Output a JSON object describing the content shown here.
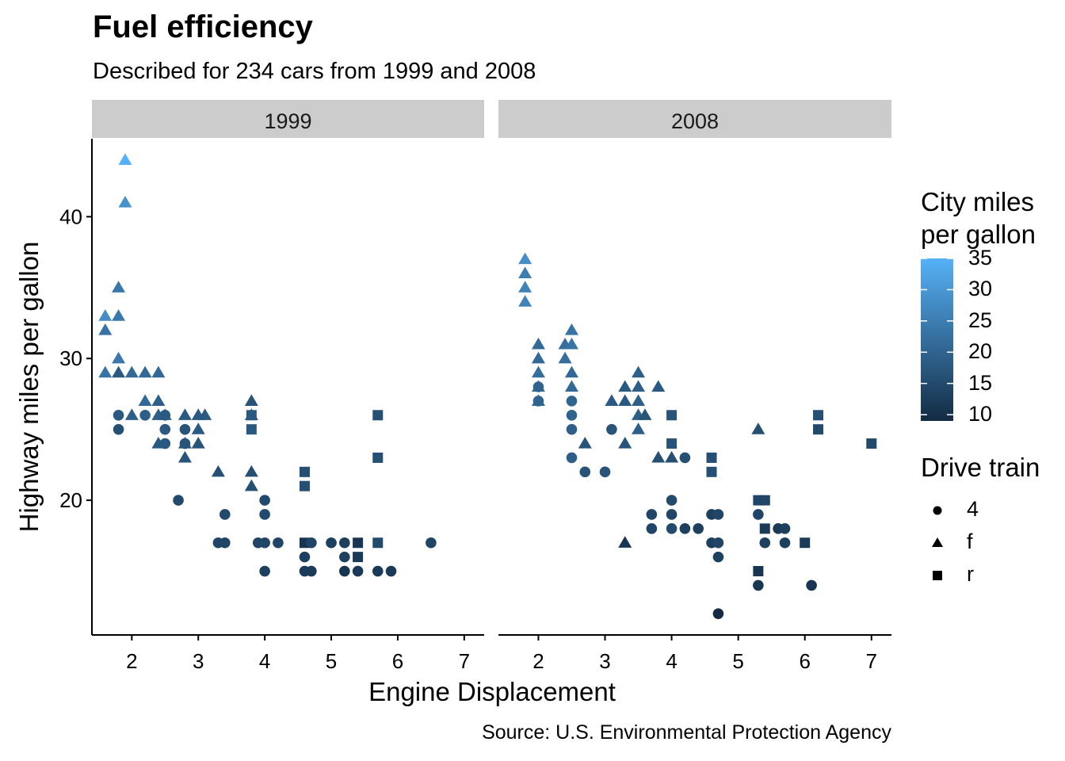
{
  "chart_data": {
    "type": "scatter",
    "title": "Fuel efficiency",
    "subtitle": "Described for 234 cars from 1999 and 2008",
    "caption": "Source: U.S. Environmental Protection Agency",
    "xlabel": "Engine Displacement",
    "ylabel": "Highway miles per gallon",
    "xlim": [
      1.4,
      7.3
    ],
    "ylim": [
      10.5,
      45.5
    ],
    "xticks": [
      2,
      3,
      4,
      5,
      6,
      7
    ],
    "yticks": [
      20,
      30,
      40
    ],
    "grid": false,
    "facets": [
      {
        "label": "1999",
        "points": [
          {
            "x": 1.9,
            "y": 44,
            "drv": "f",
            "cty": 35
          },
          {
            "x": 1.9,
            "y": 41,
            "drv": "f",
            "cty": 29
          },
          {
            "x": 1.8,
            "y": 35,
            "drv": "f",
            "cty": 24
          },
          {
            "x": 1.6,
            "y": 33,
            "drv": "f",
            "cty": 28
          },
          {
            "x": 1.8,
            "y": 33,
            "drv": "f",
            "cty": 24
          },
          {
            "x": 1.6,
            "y": 32,
            "drv": "f",
            "cty": 23
          },
          {
            "x": 1.8,
            "y": 30,
            "drv": "f",
            "cty": 24
          },
          {
            "x": 1.6,
            "y": 29,
            "drv": "f",
            "cty": 23
          },
          {
            "x": 1.8,
            "y": 29,
            "drv": "f",
            "cty": 18
          },
          {
            "x": 2.0,
            "y": 29,
            "drv": "f",
            "cty": 21
          },
          {
            "x": 2.2,
            "y": 29,
            "drv": "f",
            "cty": 21
          },
          {
            "x": 2.4,
            "y": 29,
            "drv": "f",
            "cty": 21
          },
          {
            "x": 2.2,
            "y": 27,
            "drv": "f",
            "cty": 21
          },
          {
            "x": 2.4,
            "y": 27,
            "drv": "f",
            "cty": 19
          },
          {
            "x": 1.8,
            "y": 26,
            "drv": "4",
            "cty": 18
          },
          {
            "x": 2.0,
            "y": 26,
            "drv": "f",
            "cty": 19
          },
          {
            "x": 2.2,
            "y": 26,
            "drv": "4",
            "cty": 19
          },
          {
            "x": 2.4,
            "y": 26,
            "drv": "f",
            "cty": 19
          },
          {
            "x": 2.5,
            "y": 26,
            "drv": "f",
            "cty": 19
          },
          {
            "x": 2.5,
            "y": 26,
            "drv": "4",
            "cty": 18
          },
          {
            "x": 2.8,
            "y": 26,
            "drv": "f",
            "cty": 18
          },
          {
            "x": 3.0,
            "y": 26,
            "drv": "f",
            "cty": 18
          },
          {
            "x": 3.1,
            "y": 26,
            "drv": "f",
            "cty": 18
          },
          {
            "x": 1.8,
            "y": 25,
            "drv": "4",
            "cty": 16
          },
          {
            "x": 2.5,
            "y": 25,
            "drv": "4",
            "cty": 18
          },
          {
            "x": 2.8,
            "y": 25,
            "drv": "4",
            "cty": 17
          },
          {
            "x": 3.0,
            "y": 25,
            "drv": "f",
            "cty": 18
          },
          {
            "x": 2.4,
            "y": 24,
            "drv": "f",
            "cty": 18
          },
          {
            "x": 2.5,
            "y": 24,
            "drv": "4",
            "cty": 18
          },
          {
            "x": 2.8,
            "y": 24,
            "drv": "4",
            "cty": 17
          },
          {
            "x": 2.8,
            "y": 24,
            "drv": "f",
            "cty": 17
          },
          {
            "x": 3.0,
            "y": 24,
            "drv": "f",
            "cty": 17
          },
          {
            "x": 2.8,
            "y": 23,
            "drv": "f",
            "cty": 17
          },
          {
            "x": 3.8,
            "y": 27,
            "drv": "f",
            "cty": 17
          },
          {
            "x": 3.8,
            "y": 26,
            "drv": "f",
            "cty": 17
          },
          {
            "x": 3.8,
            "y": 26,
            "drv": "r",
            "cty": 18
          },
          {
            "x": 3.8,
            "y": 25,
            "drv": "r",
            "cty": 18
          },
          {
            "x": 3.3,
            "y": 22,
            "drv": "f",
            "cty": 16
          },
          {
            "x": 3.8,
            "y": 22,
            "drv": "f",
            "cty": 16
          },
          {
            "x": 3.8,
            "y": 21,
            "drv": "f",
            "cty": 16
          },
          {
            "x": 2.7,
            "y": 20,
            "drv": "4",
            "cty": 15
          },
          {
            "x": 4.6,
            "y": 22,
            "drv": "r",
            "cty": 16
          },
          {
            "x": 4.6,
            "y": 21,
            "drv": "r",
            "cty": 16
          },
          {
            "x": 4.0,
            "y": 20,
            "drv": "4",
            "cty": 15
          },
          {
            "x": 3.4,
            "y": 19,
            "drv": "4",
            "cty": 15
          },
          {
            "x": 4.0,
            "y": 19,
            "drv": "4",
            "cty": 15
          },
          {
            "x": 3.3,
            "y": 17,
            "drv": "4",
            "cty": 14
          },
          {
            "x": 3.4,
            "y": 17,
            "drv": "4",
            "cty": 14
          },
          {
            "x": 3.9,
            "y": 17,
            "drv": "4",
            "cty": 14
          },
          {
            "x": 4.0,
            "y": 17,
            "drv": "4",
            "cty": 14
          },
          {
            "x": 4.2,
            "y": 17,
            "drv": "4",
            "cty": 14
          },
          {
            "x": 4.6,
            "y": 17,
            "drv": "r",
            "cty": 11
          },
          {
            "x": 4.7,
            "y": 17,
            "drv": "4",
            "cty": 14
          },
          {
            "x": 5.0,
            "y": 17,
            "drv": "4",
            "cty": 13
          },
          {
            "x": 5.2,
            "y": 17,
            "drv": "4",
            "cty": 13
          },
          {
            "x": 5.4,
            "y": 17,
            "drv": "r",
            "cty": 11
          },
          {
            "x": 5.7,
            "y": 17,
            "drv": "r",
            "cty": 15
          },
          {
            "x": 6.5,
            "y": 17,
            "drv": "4",
            "cty": 14
          },
          {
            "x": 5.7,
            "y": 26,
            "drv": "r",
            "cty": 16
          },
          {
            "x": 5.7,
            "y": 23,
            "drv": "r",
            "cty": 16
          },
          {
            "x": 4.6,
            "y": 16,
            "drv": "4",
            "cty": 13
          },
          {
            "x": 5.2,
            "y": 16,
            "drv": "4",
            "cty": 13
          },
          {
            "x": 5.4,
            "y": 16,
            "drv": "r",
            "cty": 12
          },
          {
            "x": 4.0,
            "y": 15,
            "drv": "4",
            "cty": 13
          },
          {
            "x": 4.6,
            "y": 15,
            "drv": "4",
            "cty": 12
          },
          {
            "x": 4.7,
            "y": 15,
            "drv": "4",
            "cty": 12
          },
          {
            "x": 5.2,
            "y": 15,
            "drv": "4",
            "cty": 11
          },
          {
            "x": 5.4,
            "y": 15,
            "drv": "4",
            "cty": 12
          },
          {
            "x": 5.7,
            "y": 15,
            "drv": "4",
            "cty": 12
          },
          {
            "x": 5.9,
            "y": 15,
            "drv": "4",
            "cty": 12
          }
        ]
      },
      {
        "label": "2008",
        "points": [
          {
            "x": 1.8,
            "y": 37,
            "drv": "f",
            "cty": 28
          },
          {
            "x": 1.8,
            "y": 36,
            "drv": "f",
            "cty": 25
          },
          {
            "x": 1.8,
            "y": 35,
            "drv": "f",
            "cty": 26
          },
          {
            "x": 1.8,
            "y": 34,
            "drv": "f",
            "cty": 26
          },
          {
            "x": 2.0,
            "y": 31,
            "drv": "f",
            "cty": 21
          },
          {
            "x": 2.0,
            "y": 30,
            "drv": "f",
            "cty": 21
          },
          {
            "x": 2.0,
            "y": 29,
            "drv": "f",
            "cty": 22
          },
          {
            "x": 2.0,
            "y": 28,
            "drv": "f",
            "cty": 21
          },
          {
            "x": 2.0,
            "y": 28,
            "drv": "4",
            "cty": 20
          },
          {
            "x": 2.0,
            "y": 27,
            "drv": "f",
            "cty": 21
          },
          {
            "x": 2.0,
            "y": 27,
            "drv": "4",
            "cty": 20
          },
          {
            "x": 2.5,
            "y": 32,
            "drv": "f",
            "cty": 23
          },
          {
            "x": 2.4,
            "y": 31,
            "drv": "f",
            "cty": 22
          },
          {
            "x": 2.5,
            "y": 31,
            "drv": "f",
            "cty": 23
          },
          {
            "x": 2.4,
            "y": 30,
            "drv": "f",
            "cty": 22
          },
          {
            "x": 2.5,
            "y": 29,
            "drv": "f",
            "cty": 21
          },
          {
            "x": 2.5,
            "y": 28,
            "drv": "f",
            "cty": 21
          },
          {
            "x": 2.5,
            "y": 27,
            "drv": "4",
            "cty": 20
          },
          {
            "x": 2.5,
            "y": 26,
            "drv": "4",
            "cty": 20
          },
          {
            "x": 2.5,
            "y": 25,
            "drv": "4",
            "cty": 19
          },
          {
            "x": 2.7,
            "y": 24,
            "drv": "f",
            "cty": 17
          },
          {
            "x": 2.5,
            "y": 23,
            "drv": "4",
            "cty": 19
          },
          {
            "x": 2.7,
            "y": 22,
            "drv": "4",
            "cty": 17
          },
          {
            "x": 3.0,
            "y": 22,
            "drv": "4",
            "cty": 17
          },
          {
            "x": 3.1,
            "y": 25,
            "drv": "4",
            "cty": 17
          },
          {
            "x": 3.5,
            "y": 29,
            "drv": "f",
            "cty": 19
          },
          {
            "x": 3.3,
            "y": 28,
            "drv": "f",
            "cty": 18
          },
          {
            "x": 3.5,
            "y": 28,
            "drv": "f",
            "cty": 19
          },
          {
            "x": 3.8,
            "y": 28,
            "drv": "f",
            "cty": 18
          },
          {
            "x": 3.1,
            "y": 27,
            "drv": "f",
            "cty": 18
          },
          {
            "x": 3.3,
            "y": 27,
            "drv": "f",
            "cty": 18
          },
          {
            "x": 3.5,
            "y": 27,
            "drv": "f",
            "cty": 19
          },
          {
            "x": 3.5,
            "y": 26,
            "drv": "f",
            "cty": 19
          },
          {
            "x": 3.6,
            "y": 26,
            "drv": "f",
            "cty": 17
          },
          {
            "x": 3.5,
            "y": 25,
            "drv": "f",
            "cty": 19
          },
          {
            "x": 3.3,
            "y": 24,
            "drv": "f",
            "cty": 17
          },
          {
            "x": 3.8,
            "y": 23,
            "drv": "f",
            "cty": 16
          },
          {
            "x": 4.0,
            "y": 23,
            "drv": "f",
            "cty": 16
          },
          {
            "x": 4.2,
            "y": 23,
            "drv": "4",
            "cty": 16
          },
          {
            "x": 4.0,
            "y": 26,
            "drv": "r",
            "cty": 17
          },
          {
            "x": 4.0,
            "y": 24,
            "drv": "r",
            "cty": 17
          },
          {
            "x": 4.6,
            "y": 23,
            "drv": "r",
            "cty": 16
          },
          {
            "x": 4.6,
            "y": 22,
            "drv": "r",
            "cty": 16
          },
          {
            "x": 4.0,
            "y": 20,
            "drv": "4",
            "cty": 15
          },
          {
            "x": 3.7,
            "y": 19,
            "drv": "4",
            "cty": 14
          },
          {
            "x": 4.0,
            "y": 19,
            "drv": "4",
            "cty": 14
          },
          {
            "x": 4.6,
            "y": 19,
            "drv": "4",
            "cty": 13
          },
          {
            "x": 4.7,
            "y": 19,
            "drv": "4",
            "cty": 14
          },
          {
            "x": 3.7,
            "y": 18,
            "drv": "4",
            "cty": 14
          },
          {
            "x": 4.0,
            "y": 18,
            "drv": "4",
            "cty": 15
          },
          {
            "x": 4.2,
            "y": 18,
            "drv": "4",
            "cty": 13
          },
          {
            "x": 4.4,
            "y": 18,
            "drv": "4",
            "cty": 13
          },
          {
            "x": 3.3,
            "y": 17,
            "drv": "f",
            "cty": 11
          },
          {
            "x": 4.6,
            "y": 17,
            "drv": "4",
            "cty": 13
          },
          {
            "x": 4.7,
            "y": 17,
            "drv": "4",
            "cty": 14
          },
          {
            "x": 4.7,
            "y": 16,
            "drv": "4",
            "cty": 13
          },
          {
            "x": 4.7,
            "y": 12,
            "drv": "4",
            "cty": 9
          },
          {
            "x": 5.3,
            "y": 25,
            "drv": "f",
            "cty": 16
          },
          {
            "x": 6.2,
            "y": 26,
            "drv": "r",
            "cty": 16
          },
          {
            "x": 6.2,
            "y": 25,
            "drv": "r",
            "cty": 15
          },
          {
            "x": 7.0,
            "y": 24,
            "drv": "r",
            "cty": 15
          },
          {
            "x": 5.3,
            "y": 20,
            "drv": "r",
            "cty": 14
          },
          {
            "x": 5.4,
            "y": 20,
            "drv": "r",
            "cty": 14
          },
          {
            "x": 5.3,
            "y": 19,
            "drv": "4",
            "cty": 14
          },
          {
            "x": 5.4,
            "y": 18,
            "drv": "r",
            "cty": 12
          },
          {
            "x": 5.6,
            "y": 18,
            "drv": "4",
            "cty": 12
          },
          {
            "x": 5.7,
            "y": 18,
            "drv": "4",
            "cty": 13
          },
          {
            "x": 5.4,
            "y": 17,
            "drv": "4",
            "cty": 13
          },
          {
            "x": 5.7,
            "y": 17,
            "drv": "4",
            "cty": 13
          },
          {
            "x": 6.0,
            "y": 17,
            "drv": "r",
            "cty": 12
          },
          {
            "x": 5.3,
            "y": 15,
            "drv": "r",
            "cty": 11
          },
          {
            "x": 5.3,
            "y": 14,
            "drv": "4",
            "cty": 11
          },
          {
            "x": 6.1,
            "y": 14,
            "drv": "4",
            "cty": 11
          }
        ]
      }
    ],
    "color_legend": {
      "title": "City miles per gallon",
      "title_lines": [
        "City miles",
        "per gallon"
      ],
      "range": [
        9,
        35
      ],
      "ticks": [
        35,
        30,
        25,
        20,
        15,
        10
      ],
      "low_color": "#132B43",
      "high_color": "#56B1F7"
    },
    "shape_legend": {
      "title": "Drive train",
      "items": [
        {
          "label": "4",
          "shape": "circle"
        },
        {
          "label": "f",
          "shape": "triangle"
        },
        {
          "label": "r",
          "shape": "square"
        }
      ]
    },
    "legend_position": "right",
    "strip_color": "#CCCCCC"
  }
}
